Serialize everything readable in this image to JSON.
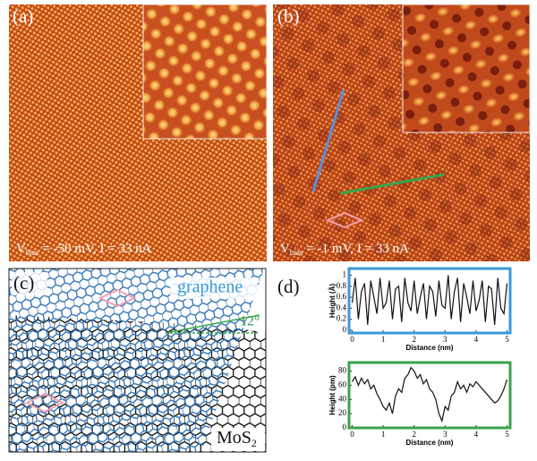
{
  "panels": {
    "a": {
      "label": "(a)",
      "caption": {
        "v": "V",
        "sub": "bias",
        "rest": "= -50 mV, I = 33 nA"
      }
    },
    "b": {
      "label": "(b)",
      "caption": {
        "v": "V",
        "sub": "bias",
        "rest": "= -1 mV, I = 33 nA"
      }
    },
    "c": {
      "label": "(c)",
      "graphene": "graphene",
      "angle": "12°",
      "mos": "MoS",
      "mos_sub": "2"
    },
    "d": {
      "label": "(d)"
    }
  },
  "chart_data": [
    {
      "type": "line",
      "ylabel": "Height (Å)",
      "xlabel": "Distance (nm)",
      "color": "#3a9ad9",
      "x": [
        0,
        0.1,
        0.2,
        0.3,
        0.4,
        0.5,
        0.6,
        0.7,
        0.8,
        0.9,
        1,
        1.1,
        1.2,
        1.3,
        1.4,
        1.5,
        1.6,
        1.7,
        1.8,
        1.9,
        2,
        2.1,
        2.2,
        2.3,
        2.4,
        2.5,
        2.6,
        2.7,
        2.8,
        2.9,
        3,
        3.1,
        3.2,
        3.3,
        3.4,
        3.5,
        3.6,
        3.7,
        3.8,
        3.9,
        4,
        4.1,
        4.2,
        4.3,
        4.4,
        4.5,
        4.6,
        4.7,
        4.8,
        4.9,
        5
      ],
      "values": [
        0.5,
        0.95,
        0.2,
        0.7,
        0.85,
        0.1,
        0.9,
        0.6,
        0.3,
        0.95,
        0.4,
        0.5,
        0.9,
        0.2,
        0.75,
        0.8,
        0.15,
        0.95,
        0.5,
        0.35,
        0.9,
        0.3,
        0.6,
        0.85,
        0.2,
        0.8,
        0.7,
        0.25,
        0.9,
        0.45,
        0.4,
        1.0,
        0.2,
        0.7,
        0.95,
        0.15,
        0.85,
        0.6,
        0.3,
        0.9,
        0.35,
        0.55,
        0.9,
        0.15,
        0.8,
        0.75,
        0.1,
        0.95,
        0.4,
        0.3,
        0.85
      ],
      "xlim": [
        -0.1,
        5.1
      ],
      "xticks": [
        0,
        1,
        2,
        3,
        4,
        5
      ],
      "ylim": [
        -0.05,
        1.12
      ],
      "yticks": [
        0,
        0.2,
        0.4,
        0.6,
        0.8,
        1
      ]
    },
    {
      "type": "line",
      "ylabel": "Height (pm)",
      "xlabel": "Distance (nm)",
      "color": "#3aa34a",
      "x": [
        0,
        0.1,
        0.2,
        0.3,
        0.4,
        0.5,
        0.6,
        0.7,
        0.8,
        0.9,
        1,
        1.1,
        1.2,
        1.3,
        1.4,
        1.5,
        1.6,
        1.7,
        1.8,
        1.9,
        2,
        2.1,
        2.2,
        2.3,
        2.4,
        2.5,
        2.6,
        2.7,
        2.8,
        2.9,
        3,
        3.1,
        3.2,
        3.3,
        3.4,
        3.5,
        3.6,
        3.7,
        3.8,
        3.9,
        4,
        4.1,
        4.2,
        4.3,
        4.4,
        4.5,
        4.6,
        4.7,
        4.8,
        4.9,
        5
      ],
      "values": [
        65,
        72,
        60,
        70,
        62,
        68,
        55,
        60,
        48,
        40,
        30,
        25,
        35,
        20,
        45,
        55,
        50,
        70,
        75,
        85,
        80,
        70,
        75,
        62,
        68,
        55,
        50,
        40,
        20,
        10,
        30,
        25,
        45,
        50,
        65,
        55,
        60,
        50,
        62,
        58,
        65,
        60,
        55,
        50,
        45,
        40,
        35,
        38,
        45,
        55,
        68
      ],
      "xlim": [
        -0.1,
        5.1
      ],
      "xticks": [
        0,
        1,
        2,
        3,
        4,
        5
      ],
      "ylim": [
        0,
        92
      ],
      "yticks": [
        0,
        20,
        40,
        60,
        80
      ]
    }
  ]
}
